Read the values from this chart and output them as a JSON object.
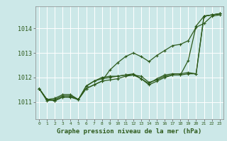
{
  "title": "Graphe pression niveau de la mer (hPa)",
  "background_color": "#cce8e8",
  "grid_color": "#ffffff",
  "line_color_main": "#2d5a1b",
  "x_ticks": [
    0,
    1,
    2,
    3,
    4,
    5,
    6,
    7,
    8,
    9,
    10,
    11,
    12,
    13,
    14,
    15,
    16,
    17,
    18,
    19,
    20,
    21,
    22,
    23
  ],
  "y_ticks": [
    1011,
    1012,
    1013,
    1014
  ],
  "ylim": [
    1010.3,
    1014.9
  ],
  "xlim": [
    -0.5,
    23.5
  ],
  "series": [
    [
      1011.55,
      1011.1,
      1011.05,
      1011.2,
      1011.2,
      1011.1,
      1011.55,
      1011.7,
      1011.85,
      1012.3,
      1012.6,
      1012.85,
      1013.0,
      1012.85,
      1012.65,
      1012.9,
      1013.1,
      1013.3,
      1013.35,
      1013.5,
      1014.05,
      1014.2,
      1014.5,
      1014.55
    ],
    [
      1011.55,
      1011.1,
      1011.05,
      1011.2,
      1011.2,
      1011.1,
      1011.55,
      1011.7,
      1011.85,
      1011.9,
      1011.95,
      1012.05,
      1012.1,
      1012.05,
      1011.8,
      1011.9,
      1012.05,
      1012.1,
      1012.1,
      1012.7,
      1014.1,
      1014.5,
      1014.55,
      1014.6
    ],
    [
      1011.55,
      1011.1,
      1011.15,
      1011.3,
      1011.3,
      1011.1,
      1011.65,
      1011.85,
      1012.0,
      1012.05,
      1012.05,
      1012.1,
      1012.15,
      1011.95,
      1011.75,
      1011.95,
      1012.1,
      1012.15,
      1012.15,
      1012.2,
      1012.15,
      1014.5,
      1014.55,
      1014.6
    ],
    [
      1011.55,
      1011.05,
      1011.1,
      1011.25,
      1011.25,
      1011.1,
      1011.65,
      1011.85,
      1011.95,
      1012.0,
      1012.05,
      1012.1,
      1012.1,
      1011.95,
      1011.7,
      1011.85,
      1012.0,
      1012.1,
      1012.1,
      1012.15,
      1012.15,
      1014.5,
      1014.55,
      1014.6
    ]
  ]
}
